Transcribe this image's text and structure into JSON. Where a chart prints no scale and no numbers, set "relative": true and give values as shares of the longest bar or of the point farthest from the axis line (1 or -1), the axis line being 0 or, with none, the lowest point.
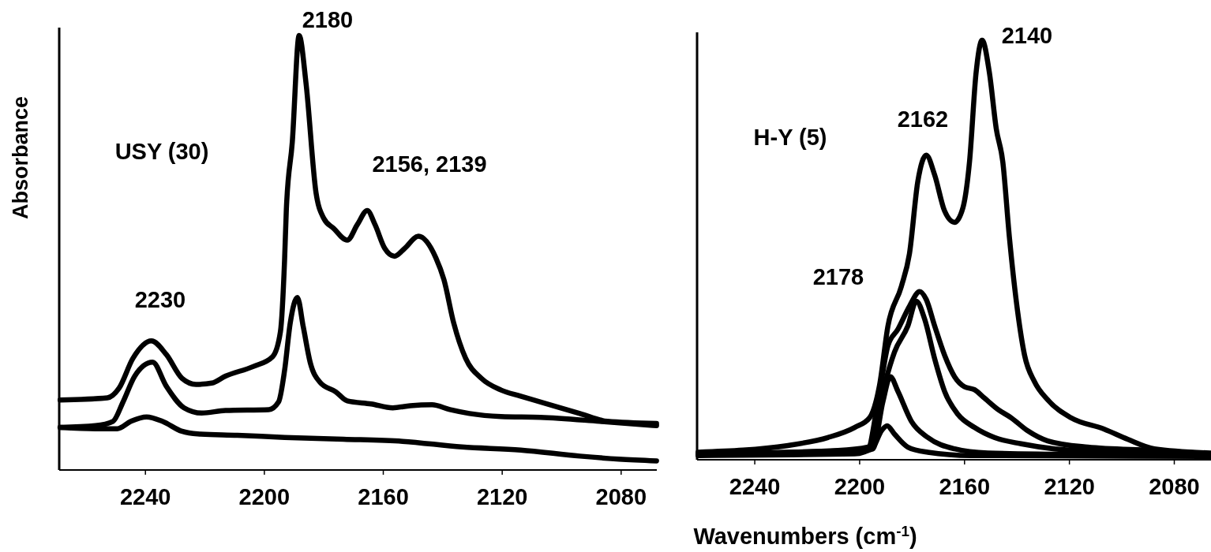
{
  "chart_data": [
    {
      "type": "line",
      "relative": true,
      "ylabel": "Absorbance",
      "xlim": [
        2269,
        2068
      ],
      "xticks": [
        2240,
        2200,
        2160,
        2120,
        2080
      ],
      "tick_labels": "x",
      "annotations": [
        "USY (30)",
        "2230",
        "2180",
        "2156, 2139"
      ],
      "series": [
        {
          "color": "#000000",
          "x": [
            2268.7,
            2252.8,
            2248.9,
            2244.2,
            2238.0,
            2233.0,
            2227.7,
            2223.0,
            2217.7,
            2213.1,
            2203.8,
            2197.2,
            2194.6,
            2193.2,
            2192.6,
            2190.6,
            2188.3,
            2186.0,
            2182.6,
            2180.0,
            2176.7,
            2172.1,
            2168.7,
            2165.4,
            2162.8,
            2159.5,
            2156.2,
            2152.8,
            2148.2,
            2142.3,
            2139.6,
            2136.3,
            2132.3,
            2127.0,
            2120.4,
            2113.8,
            2100.5,
            2093.9,
            2084.6,
            2068.1
          ],
          "values": [
            0.161,
            0.166,
            0.188,
            0.257,
            0.297,
            0.266,
            0.211,
            0.197,
            0.2,
            0.216,
            0.238,
            0.261,
            0.318,
            0.483,
            0.6,
            0.755,
            1,
            0.891,
            0.637,
            0.579,
            0.556,
            0.529,
            0.565,
            0.597,
            0.565,
            0.51,
            0.492,
            0.51,
            0.538,
            0.488,
            0.438,
            0.338,
            0.257,
            0.211,
            0.184,
            0.17,
            0.143,
            0.13,
            0.112,
            0.107
          ]
        },
        {
          "color": "#000000",
          "x": [
            2268.7,
            2256.8,
            2250.9,
            2247.5,
            2243.6,
            2237.6,
            2233.0,
            2227.0,
            2221.1,
            2213.1,
            2198.5,
            2195.2,
            2193.2,
            2191.3,
            2188.9,
            2186.9,
            2184.6,
            2181.3,
            2176.0,
            2172.1,
            2164.1,
            2156.8,
            2150.9,
            2143.6,
            2137.6,
            2131.0,
            2120.4,
            2107.2,
            2087.3,
            2068.1
          ],
          "values": [
            0.098,
            0.102,
            0.112,
            0.157,
            0.216,
            0.248,
            0.193,
            0.143,
            0.131,
            0.137,
            0.139,
            0.157,
            0.229,
            0.338,
            0.397,
            0.329,
            0.248,
            0.202,
            0.18,
            0.159,
            0.152,
            0.143,
            0.148,
            0.15,
            0.139,
            0.13,
            0.123,
            0.121,
            0.112,
            0.102
          ]
        },
        {
          "color": "#000000",
          "x": [
            2268.7,
            2256.8,
            2249.5,
            2244.9,
            2239.6,
            2234.3,
            2227.7,
            2222.4,
            2209.1,
            2193.2,
            2173.4,
            2153.5,
            2133.6,
            2113.8,
            2093.9,
            2080.7,
            2068.1
          ],
          "values": [
            0.098,
            0.095,
            0.095,
            0.112,
            0.122,
            0.112,
            0.089,
            0.083,
            0.08,
            0.075,
            0.071,
            0.066,
            0.053,
            0.046,
            0.032,
            0.025,
            0.021
          ]
        }
      ]
    },
    {
      "type": "line",
      "relative": true,
      "xlabel": "Wavenumbers (cm$^{-1}$)",
      "xlim": [
        2262,
        2066
      ],
      "xticks": [
        2240,
        2200,
        2160,
        2120,
        2080
      ],
      "tick_labels": "x",
      "annotations": [
        "H-Y (5)",
        "2162",
        "2140",
        "2178"
      ],
      "series": [
        {
          "color": "#000000",
          "x": [
            2261.6,
            2227.3,
            2212.1,
            2201.9,
            2196.2,
            2192.4,
            2189.2,
            2184.1,
            2181.0,
            2177.8,
            2174.6,
            2171.4,
            2167.6,
            2163.8,
            2160.6,
            2158.1,
            2155.6,
            2153.3,
            2150.5,
            2147.9,
            2145.4,
            2142.9,
            2139.7,
            2137.1,
            2133.3,
            2128.3,
            2119.4,
            2106.7,
            2097.8,
            2087.6,
            2066.3
          ],
          "values": [
            0.018,
            0.034,
            0.053,
            0.077,
            0.1,
            0.178,
            0.319,
            0.413,
            0.491,
            0.664,
            0.726,
            0.679,
            0.593,
            0.566,
            0.601,
            0.71,
            0.922,
            1,
            0.922,
            0.789,
            0.71,
            0.531,
            0.351,
            0.249,
            0.186,
            0.143,
            0.1,
            0.073,
            0.049,
            0.026,
            0.016
          ]
        },
        {
          "color": "#000000",
          "x": [
            2261.6,
            2208.3,
            2196.8,
            2193.0,
            2189.2,
            2185.4,
            2181.0,
            2177.1,
            2174.6,
            2171.4,
            2167.6,
            2163.8,
            2160.0,
            2156.2,
            2152.4,
            2147.3,
            2142.2,
            2135.9,
            2128.3,
            2113.0,
            2087.6,
            2066.3
          ],
          "values": [
            0.014,
            0.022,
            0.03,
            0.139,
            0.272,
            0.311,
            0.366,
            0.401,
            0.382,
            0.319,
            0.249,
            0.198,
            0.174,
            0.167,
            0.147,
            0.12,
            0.1,
            0.069,
            0.045,
            0.03,
            0.022,
            0.014
          ]
        },
        {
          "color": "#000000",
          "x": [
            2261.6,
            2201.9,
            2195.6,
            2190.5,
            2186.7,
            2181.6,
            2178.4,
            2175.2,
            2171.4,
            2167.6,
            2162.5,
            2156.2,
            2148.6,
            2138.4,
            2125.7,
            2100.3,
            2066.3
          ],
          "values": [
            0.014,
            0.022,
            0.03,
            0.178,
            0.257,
            0.319,
            0.378,
            0.335,
            0.241,
            0.163,
            0.108,
            0.077,
            0.053,
            0.038,
            0.026,
            0.018,
            0.013
          ]
        },
        {
          "color": "#000000",
          "x": [
            2261.6,
            2201.9,
            2194.9,
            2191.1,
            2188.3,
            2185.4,
            2180.3,
            2174.0,
            2163.8,
            2151.1,
            2125.7,
            2066.3
          ],
          "values": [
            0.013,
            0.018,
            0.026,
            0.139,
            0.198,
            0.163,
            0.092,
            0.053,
            0.026,
            0.016,
            0.013,
            0.01
          ]
        },
        {
          "color": "#000000",
          "x": [
            2261.6,
            2201.9,
            2194.9,
            2191.7,
            2189.5,
            2186.7,
            2181.6,
            2174.0,
            2157.5,
            2066.3
          ],
          "values": [
            0.01,
            0.014,
            0.03,
            0.069,
            0.081,
            0.061,
            0.03,
            0.018,
            0.01,
            0.008
          ]
        }
      ]
    }
  ]
}
